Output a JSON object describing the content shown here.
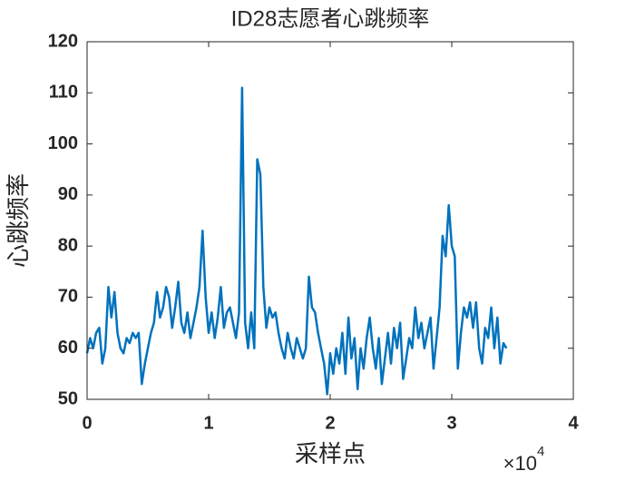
{
  "chart_data": {
    "type": "line",
    "title": "ID28志愿者心跳频率",
    "x_label": "采样点",
    "y_label": "心跳频率",
    "x_multiplier": {
      "base": "×10",
      "exponent": "4"
    },
    "xlim": [
      0,
      4
    ],
    "xticks": [
      0,
      1,
      2,
      3,
      4
    ],
    "ylim": [
      50,
      120
    ],
    "yticks": [
      50,
      60,
      70,
      80,
      90,
      100,
      110,
      120
    ],
    "grid": false,
    "x": [
      0,
      0.025,
      0.05,
      0.075,
      0.1,
      0.125,
      0.15,
      0.175,
      0.2,
      0.225,
      0.25,
      0.275,
      0.3,
      0.325,
      0.35,
      0.375,
      0.4,
      0.425,
      0.45,
      0.475,
      0.5,
      0.525,
      0.55,
      0.575,
      0.6,
      0.625,
      0.65,
      0.675,
      0.7,
      0.725,
      0.75,
      0.775,
      0.8,
      0.825,
      0.85,
      0.875,
      0.9,
      0.925,
      0.95,
      0.975,
      1.0,
      1.025,
      1.05,
      1.075,
      1.1,
      1.125,
      1.15,
      1.175,
      1.2,
      1.225,
      1.25,
      1.275,
      1.3,
      1.325,
      1.35,
      1.375,
      1.4,
      1.425,
      1.45,
      1.475,
      1.5,
      1.525,
      1.55,
      1.575,
      1.6,
      1.625,
      1.65,
      1.675,
      1.7,
      1.725,
      1.75,
      1.775,
      1.8,
      1.825,
      1.85,
      1.875,
      1.9,
      1.925,
      1.95,
      1.975,
      2.0,
      2.025,
      2.05,
      2.075,
      2.1,
      2.125,
      2.15,
      2.175,
      2.2,
      2.225,
      2.25,
      2.275,
      2.3,
      2.325,
      2.35,
      2.375,
      2.4,
      2.425,
      2.45,
      2.475,
      2.5,
      2.525,
      2.55,
      2.575,
      2.6,
      2.625,
      2.65,
      2.675,
      2.7,
      2.725,
      2.75,
      2.775,
      2.8,
      2.825,
      2.85,
      2.875,
      2.9,
      2.925,
      2.95,
      2.975,
      3.0,
      3.025,
      3.05,
      3.075,
      3.1,
      3.125,
      3.15,
      3.175,
      3.2,
      3.225,
      3.25,
      3.275,
      3.3,
      3.325,
      3.35,
      3.375,
      3.4,
      3.425,
      3.45
    ],
    "series": [
      {
        "color": "#0072bd",
        "values": [
          59,
          62,
          60,
          63,
          64,
          57,
          60,
          72,
          66,
          71,
          63,
          60,
          59,
          62,
          61,
          63,
          62,
          63,
          53,
          57,
          60,
          63,
          65,
          71,
          66,
          68,
          72,
          70,
          64,
          68,
          73,
          65,
          63,
          67,
          62,
          65,
          68,
          72,
          83,
          70,
          63,
          67,
          62,
          66,
          72,
          64,
          67,
          68,
          65,
          62,
          67,
          111,
          65,
          60,
          67,
          60,
          97,
          94,
          72,
          64,
          68,
          66,
          67,
          63,
          60,
          58,
          63,
          60,
          58,
          62,
          60,
          58,
          60,
          74,
          68,
          67,
          63,
          60,
          57,
          51,
          59,
          55,
          60,
          57,
          63,
          55,
          66,
          58,
          62,
          52,
          60,
          56,
          62,
          66,
          60,
          56,
          62,
          53,
          58,
          63,
          57,
          64,
          60,
          65,
          54,
          58,
          62,
          60,
          68,
          62,
          65,
          60,
          63,
          66,
          56,
          62,
          68,
          82,
          78,
          88,
          80,
          78,
          56,
          63,
          68,
          66,
          69,
          64,
          69,
          60,
          57,
          64,
          62,
          68,
          60,
          66,
          57,
          61,
          60
        ]
      }
    ]
  }
}
